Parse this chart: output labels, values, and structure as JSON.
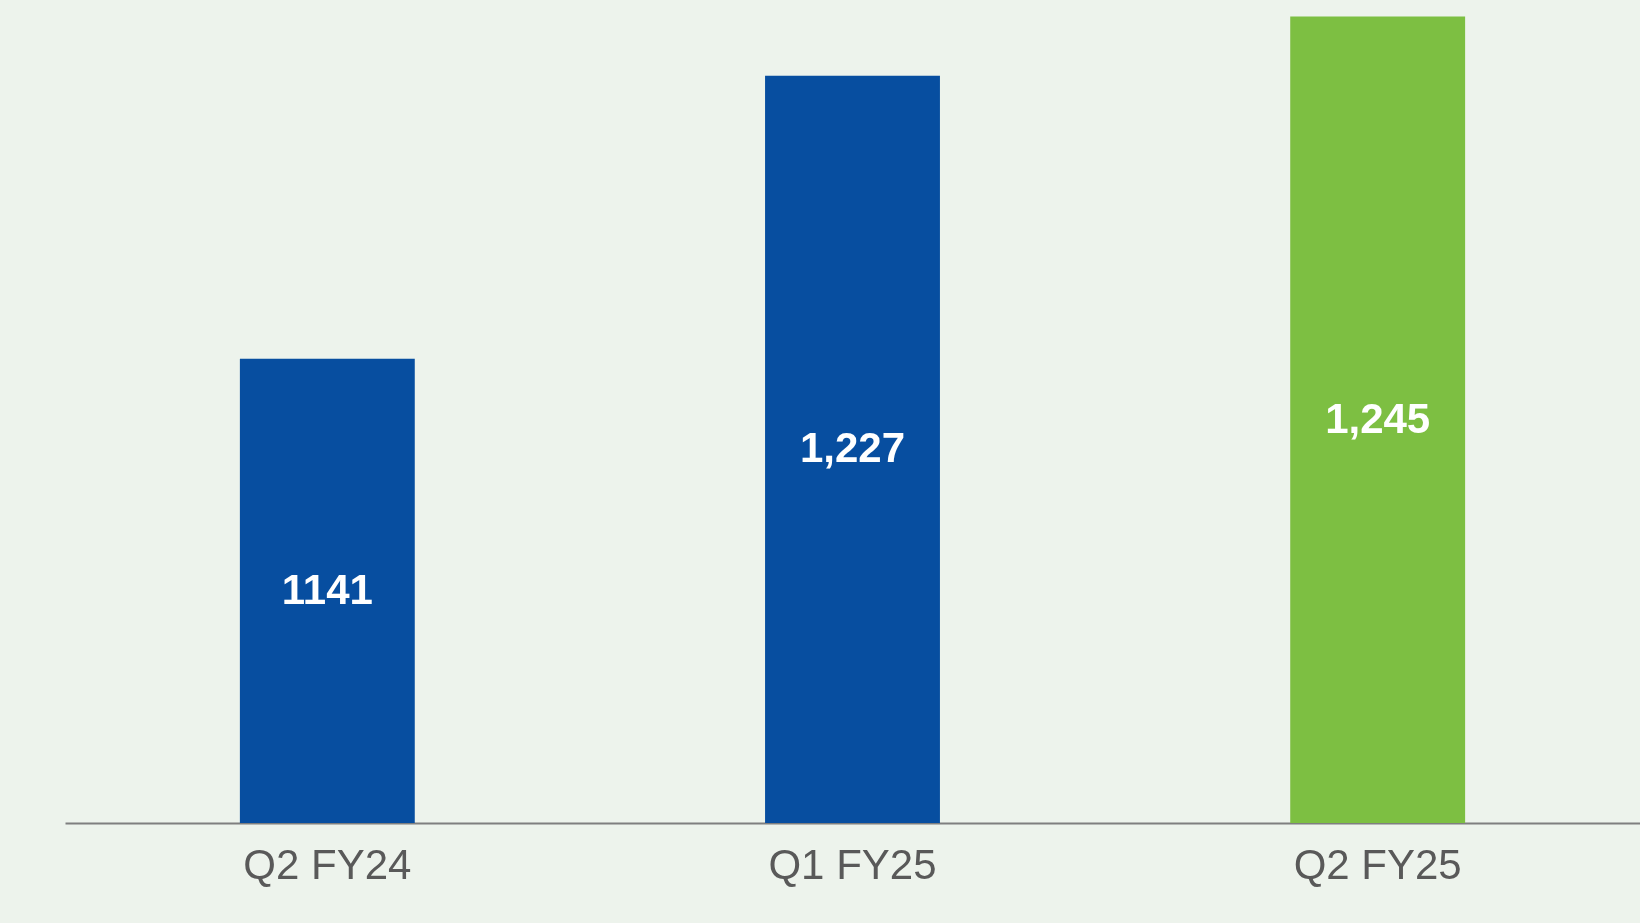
{
  "chart_data": {
    "type": "bar",
    "categories": [
      "Q2 FY24",
      "Q1 FY25",
      "Q2 FY25"
    ],
    "values": [
      1141,
      1227,
      1245
    ],
    "colors": [
      "#074ea0",
      "#074ea0",
      "#7dbf42"
    ],
    "value_labels": [
      "1141",
      "1,227",
      "1,245"
    ],
    "ylim": [
      1000,
      1250
    ],
    "tick_labels": "x",
    "grid": false
  }
}
